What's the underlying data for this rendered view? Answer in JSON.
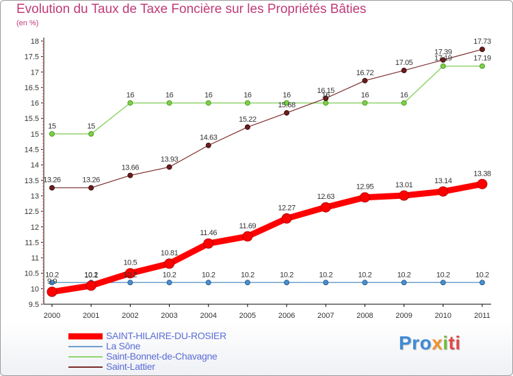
{
  "header": {
    "title": "Evolution du Taux de Taxe Foncière sur les Propriétés Bâties",
    "subtitle": "(en %)"
  },
  "brand": {
    "part1": "Pro",
    "part2": "x",
    "part3": "i",
    "part4": "ti"
  },
  "chart_data": {
    "type": "line",
    "title": "Evolution du Taux de Taxe Foncière sur les Propriétés Bâties",
    "ylabel": "(en %)",
    "xlabel": "",
    "x": [
      "2000",
      "2001",
      "2002",
      "2003",
      "2004",
      "2005",
      "2006",
      "2007",
      "2008",
      "2009",
      "2010",
      "2011"
    ],
    "ylim": [
      9.5,
      18
    ],
    "yticks": [
      "9.5",
      "10",
      "10.5",
      "11",
      "11.5",
      "12",
      "12.5",
      "13",
      "13.5",
      "14",
      "14.5",
      "15",
      "15.5",
      "16",
      "16.5",
      "17",
      "17.5",
      "18"
    ],
    "grid": false,
    "legend_position": "bottom-left",
    "series": [
      {
        "name": "SAINT-HILAIRE-DU-ROSIER",
        "color": "#ff0000",
        "values": [
          9.9,
          10.1,
          10.5,
          10.81,
          11.46,
          11.69,
          12.27,
          12.63,
          12.95,
          13.01,
          13.14,
          13.38
        ],
        "labels": [
          "9.9",
          "10.1",
          "10.5",
          "10.81",
          "11.46",
          "11.69",
          "12.27",
          "12.63",
          "12.95",
          "13.01",
          "13.14",
          "13.38"
        ]
      },
      {
        "name": "La Sône",
        "color": "#6f9fcc",
        "values": [
          10.2,
          10.2,
          10.2,
          10.2,
          10.2,
          10.2,
          10.2,
          10.2,
          10.2,
          10.2,
          10.2,
          10.2
        ],
        "labels": [
          "10.2",
          "10.2",
          "10.2",
          "10.2",
          "10.2",
          "10.2",
          "10.2",
          "10.2",
          "10.2",
          "10.2",
          "10.2",
          "10.2"
        ]
      },
      {
        "name": "Saint-Bonnet-de-Chavagne",
        "color": "#8fd46b",
        "values": [
          15,
          15,
          16,
          16,
          16,
          16,
          16,
          16,
          16,
          16,
          17.19,
          17.19
        ],
        "labels": [
          "15",
          "15",
          "16",
          "16",
          "16",
          "16",
          "16",
          "16",
          "16",
          "16",
          "17.19",
          "17.19"
        ]
      },
      {
        "name": "Saint-Lattier",
        "color": "#7a2a2a",
        "values": [
          13.26,
          13.26,
          13.66,
          13.93,
          14.63,
          15.22,
          15.68,
          16.15,
          16.72,
          17.05,
          17.39,
          17.73
        ],
        "labels": [
          "13.26",
          "13.26",
          "13.66",
          "13.93",
          "14.63",
          "15.22",
          "15.68",
          "16.15",
          "16.72",
          "17.05",
          "17.39",
          "17.73"
        ]
      }
    ]
  }
}
